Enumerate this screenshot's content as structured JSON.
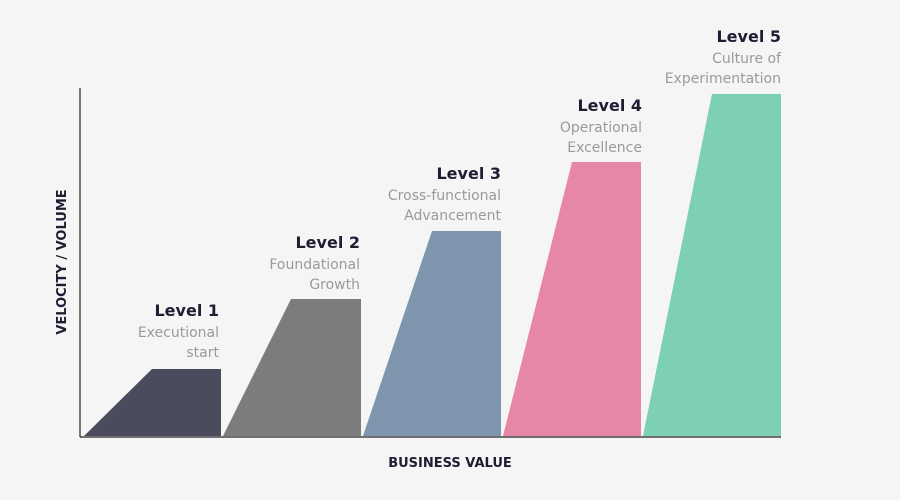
{
  "diagram": {
    "x_axis_label": "BUSINESS VALUE",
    "y_axis_label": "VELOCITY / VOLUME",
    "colors": {
      "axis": "#222222",
      "title_text": "#1f1d33",
      "desc_text": "#9a9a9a"
    },
    "levels": [
      {
        "title": "Level 1",
        "desc_lines": [
          "Executional",
          "start"
        ],
        "color": "#4b4b5e"
      },
      {
        "title": "Level 2",
        "desc_lines": [
          "Foundational",
          "Growth"
        ],
        "color": "#7c7c7c"
      },
      {
        "title": "Level 3",
        "desc_lines": [
          "Cross-functional",
          "Advancement"
        ],
        "color": "#7f95ad"
      },
      {
        "title": "Level 4",
        "desc_lines": [
          "Operational",
          "Excellence"
        ],
        "color": "#e787a6"
      },
      {
        "title": "Level 5",
        "desc_lines": [
          "Culture of",
          "Experimentation"
        ],
        "color": "#7dd0b2"
      }
    ]
  }
}
